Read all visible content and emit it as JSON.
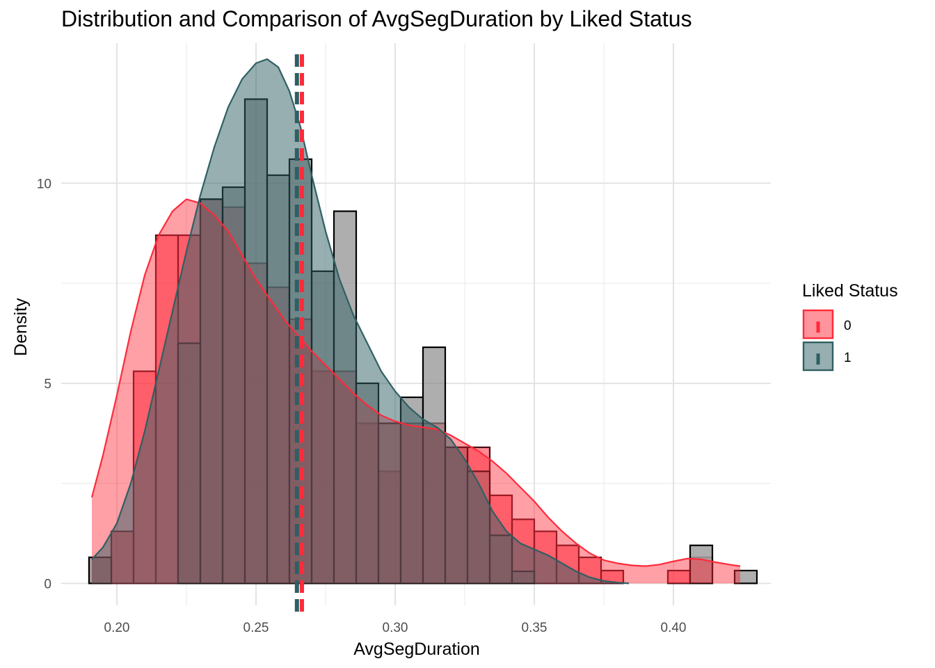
{
  "chart_data": {
    "type": "histogram",
    "title": "Distribution and Comparison of AvgSegDuration by Liked Status",
    "xlabel": "AvgSegDuration",
    "ylabel": "Density",
    "xlim": [
      0.18,
      0.435
    ],
    "ylim": [
      -0.55,
      13.5
    ],
    "x_ticks": [
      0.2,
      0.25,
      0.3,
      0.35,
      0.4
    ],
    "x_tick_labels": [
      "0.20",
      "0.25",
      "0.30",
      "0.35",
      "0.40"
    ],
    "y_ticks": [
      0,
      5,
      10
    ],
    "y_tick_labels": [
      "0",
      "5",
      "10"
    ],
    "grid": true,
    "legend": {
      "title": "Liked Status",
      "position": "right",
      "items": [
        {
          "label": "0",
          "color": "#ff2a3a"
        },
        {
          "label": "1",
          "color": "#2f5f63"
        }
      ]
    },
    "bin_width": 0.008,
    "series": [
      {
        "name": "0",
        "color": "#ff2a3a",
        "bins": [
          {
            "x0": 0.19,
            "x1": 0.198,
            "density": 0.65
          },
          {
            "x0": 0.198,
            "x1": 0.206,
            "density": 1.3
          },
          {
            "x0": 0.206,
            "x1": 0.214,
            "density": 5.3
          },
          {
            "x0": 0.214,
            "x1": 0.222,
            "density": 8.7
          },
          {
            "x0": 0.222,
            "x1": 0.23,
            "density": 8.7
          },
          {
            "x0": 0.23,
            "x1": 0.238,
            "density": 9.6
          },
          {
            "x0": 0.238,
            "x1": 0.246,
            "density": 9.4
          },
          {
            "x0": 0.246,
            "x1": 0.254,
            "density": 8.0
          },
          {
            "x0": 0.254,
            "x1": 0.262,
            "density": 7.4
          },
          {
            "x0": 0.262,
            "x1": 0.27,
            "density": 6.6
          },
          {
            "x0": 0.27,
            "x1": 0.278,
            "density": 5.3
          },
          {
            "x0": 0.278,
            "x1": 0.286,
            "density": 5.3
          },
          {
            "x0": 0.286,
            "x1": 0.294,
            "density": 4.0
          },
          {
            "x0": 0.294,
            "x1": 0.302,
            "density": 2.8
          },
          {
            "x0": 0.302,
            "x1": 0.31,
            "density": 4.0
          },
          {
            "x0": 0.31,
            "x1": 0.318,
            "density": 4.0
          },
          {
            "x0": 0.318,
            "x1": 0.326,
            "density": 3.4
          },
          {
            "x0": 0.326,
            "x1": 0.334,
            "density": 3.4
          },
          {
            "x0": 0.334,
            "x1": 0.342,
            "density": 2.2
          },
          {
            "x0": 0.342,
            "x1": 0.35,
            "density": 1.6
          },
          {
            "x0": 0.35,
            "x1": 0.358,
            "density": 1.3
          },
          {
            "x0": 0.358,
            "x1": 0.366,
            "density": 0.95
          },
          {
            "x0": 0.366,
            "x1": 0.374,
            "density": 0.65
          },
          {
            "x0": 0.374,
            "x1": 0.382,
            "density": 0.32
          },
          {
            "x0": 0.398,
            "x1": 0.406,
            "density": 0.32
          },
          {
            "x0": 0.406,
            "x1": 0.414,
            "density": 0.65
          },
          {
            "x0": 0.414,
            "x1": 0.422,
            "density": 0.0
          }
        ],
        "density_curve": {
          "x": [
            0.191,
            0.195,
            0.2,
            0.205,
            0.21,
            0.215,
            0.22,
            0.225,
            0.23,
            0.235,
            0.24,
            0.245,
            0.25,
            0.255,
            0.26,
            0.265,
            0.27,
            0.275,
            0.28,
            0.285,
            0.29,
            0.295,
            0.3,
            0.305,
            0.31,
            0.315,
            0.32,
            0.325,
            0.33,
            0.335,
            0.34,
            0.345,
            0.35,
            0.355,
            0.36,
            0.365,
            0.37,
            0.375,
            0.38,
            0.385,
            0.39,
            0.395,
            0.4,
            0.405,
            0.41,
            0.415,
            0.42,
            0.424
          ],
          "y": [
            2.15,
            3.2,
            4.7,
            6.3,
            7.7,
            8.7,
            9.3,
            9.6,
            9.5,
            9.2,
            8.8,
            8.2,
            7.6,
            7.1,
            6.6,
            6.2,
            5.8,
            5.45,
            5.1,
            4.75,
            4.45,
            4.2,
            4.05,
            3.95,
            3.9,
            3.85,
            3.7,
            3.5,
            3.3,
            3.05,
            2.75,
            2.4,
            2.05,
            1.65,
            1.3,
            1.0,
            0.75,
            0.58,
            0.5,
            0.45,
            0.43,
            0.47,
            0.55,
            0.62,
            0.6,
            0.53,
            0.47,
            0.43
          ]
        },
        "mean": 0.2665
      },
      {
        "name": "1",
        "color": "#2f5f63",
        "bins": [
          {
            "x0": 0.19,
            "x1": 0.198,
            "density": 0.0
          },
          {
            "x0": 0.198,
            "x1": 0.206,
            "density": 0.0
          },
          {
            "x0": 0.222,
            "x1": 0.23,
            "density": 6.0
          },
          {
            "x0": 0.23,
            "x1": 0.238,
            "density": 9.6
          },
          {
            "x0": 0.238,
            "x1": 0.246,
            "density": 9.9
          },
          {
            "x0": 0.246,
            "x1": 0.254,
            "density": 12.1
          },
          {
            "x0": 0.254,
            "x1": 0.262,
            "density": 10.2
          },
          {
            "x0": 0.262,
            "x1": 0.27,
            "density": 10.6
          },
          {
            "x0": 0.27,
            "x1": 0.278,
            "density": 7.8
          },
          {
            "x0": 0.278,
            "x1": 0.286,
            "density": 9.3
          },
          {
            "x0": 0.286,
            "x1": 0.294,
            "density": 5.0
          },
          {
            "x0": 0.294,
            "x1": 0.302,
            "density": 4.0
          },
          {
            "x0": 0.302,
            "x1": 0.31,
            "density": 4.65
          },
          {
            "x0": 0.31,
            "x1": 0.318,
            "density": 5.9
          },
          {
            "x0": 0.318,
            "x1": 0.326,
            "density": 3.4
          },
          {
            "x0": 0.326,
            "x1": 0.334,
            "density": 2.8
          },
          {
            "x0": 0.334,
            "x1": 0.342,
            "density": 1.2
          },
          {
            "x0": 0.342,
            "x1": 0.35,
            "density": 0.3
          }
        ],
        "overlap_bins": [
          {
            "x0": 0.19,
            "x1": 0.198,
            "density": 0.65
          },
          {
            "x0": 0.406,
            "x1": 0.414,
            "density": 0.95
          },
          {
            "x0": 0.422,
            "x1": 0.43,
            "density": 0.32
          }
        ],
        "density_curve": {
          "x": [
            0.191,
            0.195,
            0.2,
            0.205,
            0.21,
            0.215,
            0.22,
            0.225,
            0.23,
            0.235,
            0.24,
            0.245,
            0.25,
            0.254,
            0.258,
            0.262,
            0.266,
            0.27,
            0.275,
            0.28,
            0.285,
            0.29,
            0.295,
            0.3,
            0.305,
            0.31,
            0.315,
            0.32,
            0.325,
            0.33,
            0.335,
            0.34,
            0.345,
            0.35,
            0.355,
            0.36,
            0.365,
            0.37,
            0.375,
            0.38,
            0.384
          ],
          "y": [
            0.6,
            0.9,
            1.5,
            2.5,
            3.8,
            5.3,
            6.8,
            8.3,
            9.7,
            10.9,
            11.9,
            12.6,
            13.0,
            13.1,
            12.9,
            12.3,
            11.4,
            10.2,
            8.8,
            7.6,
            6.7,
            6.0,
            5.3,
            4.8,
            4.4,
            4.1,
            3.9,
            3.6,
            3.1,
            2.5,
            1.8,
            1.3,
            1.0,
            0.85,
            0.7,
            0.5,
            0.3,
            0.15,
            0.06,
            0.02,
            0.0
          ]
        },
        "mean": 0.2647
      }
    ]
  }
}
